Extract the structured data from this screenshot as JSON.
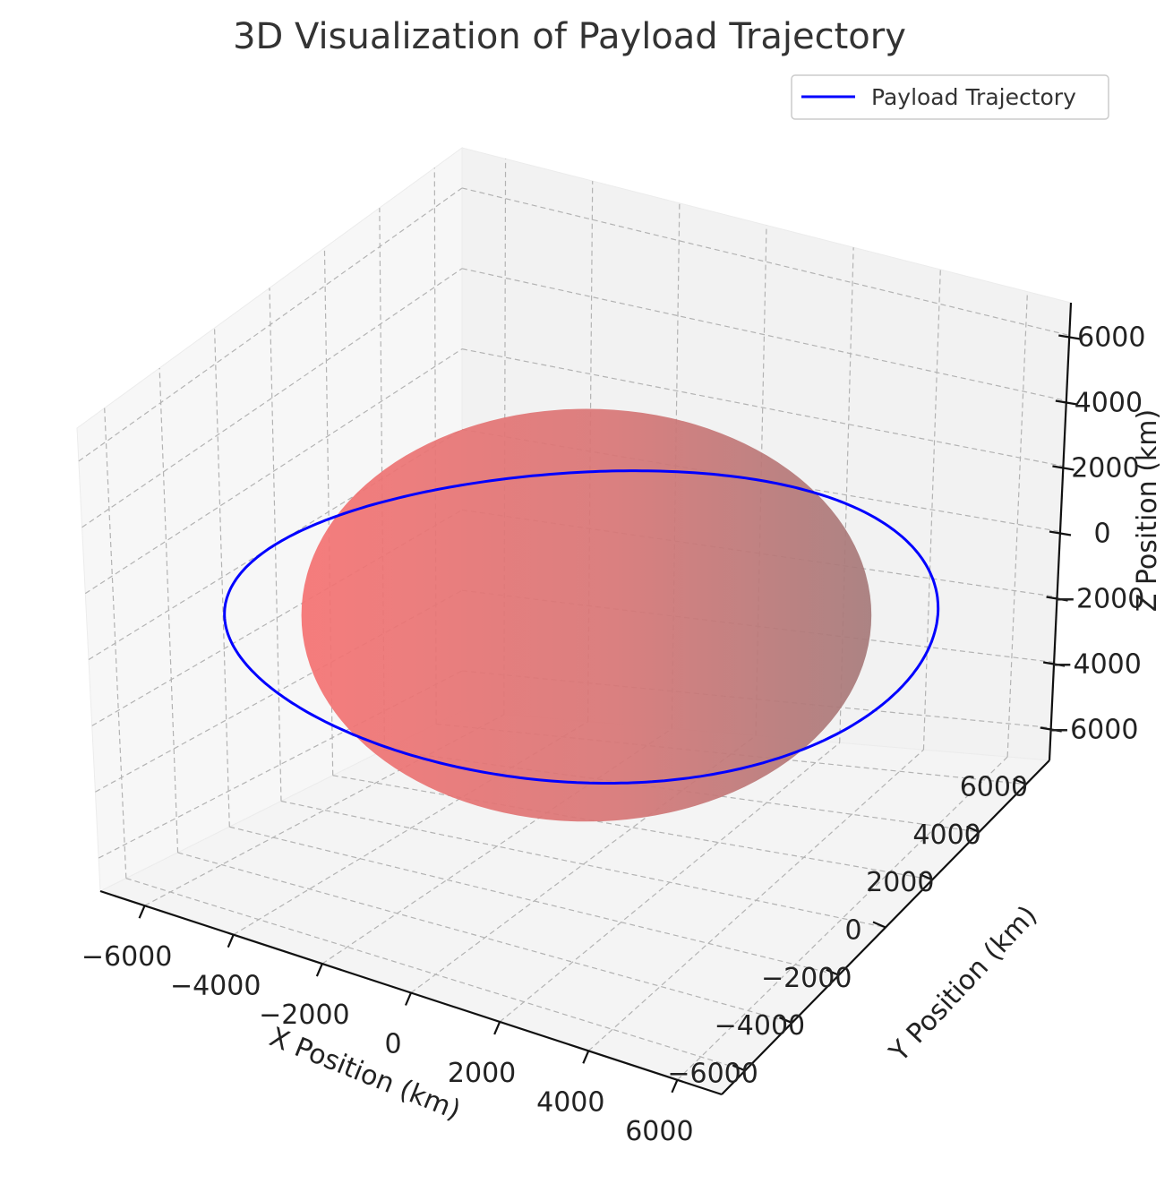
{
  "chart_data": {
    "type": "line",
    "projection": "3d",
    "title": "3D Visualization of Payload Trajectory",
    "xlabel": "X Position (km)",
    "ylabel": "Y Position (km)",
    "zlabel": "Z Position (km)",
    "xlim": [
      -7000,
      7000
    ],
    "ylim": [
      -7000,
      7000
    ],
    "zlim": [
      -7000,
      7000
    ],
    "xticks": [
      -6000,
      -4000,
      -2000,
      0,
      2000,
      4000,
      6000
    ],
    "yticks": [
      -6000,
      -4000,
      -2000,
      0,
      2000,
      4000,
      6000
    ],
    "zticks": [
      -6000,
      -4000,
      -2000,
      0,
      2000,
      4000,
      6000
    ],
    "xtick_labels": [
      "−6000",
      "−4000",
      "−2000",
      "0",
      "2000",
      "4000",
      "6000"
    ],
    "ytick_labels": [
      "−6000",
      "−4000",
      "−2000",
      "0",
      "2000",
      "4000",
      "6000"
    ],
    "ztick_labels": [
      "−6000",
      "−4000",
      "−2000",
      "0",
      "2000",
      "4000",
      "6000"
    ],
    "grid": true,
    "legend_position": "top-right",
    "sphere": {
      "radius": 6371,
      "center": [
        0,
        0,
        0
      ],
      "color": "#f26b6b"
    },
    "series": [
      {
        "name": "Payload Trajectory",
        "color": "#0000ff",
        "orbit": "circular equatorial",
        "radius": 7000,
        "z": 0
      }
    ]
  }
}
